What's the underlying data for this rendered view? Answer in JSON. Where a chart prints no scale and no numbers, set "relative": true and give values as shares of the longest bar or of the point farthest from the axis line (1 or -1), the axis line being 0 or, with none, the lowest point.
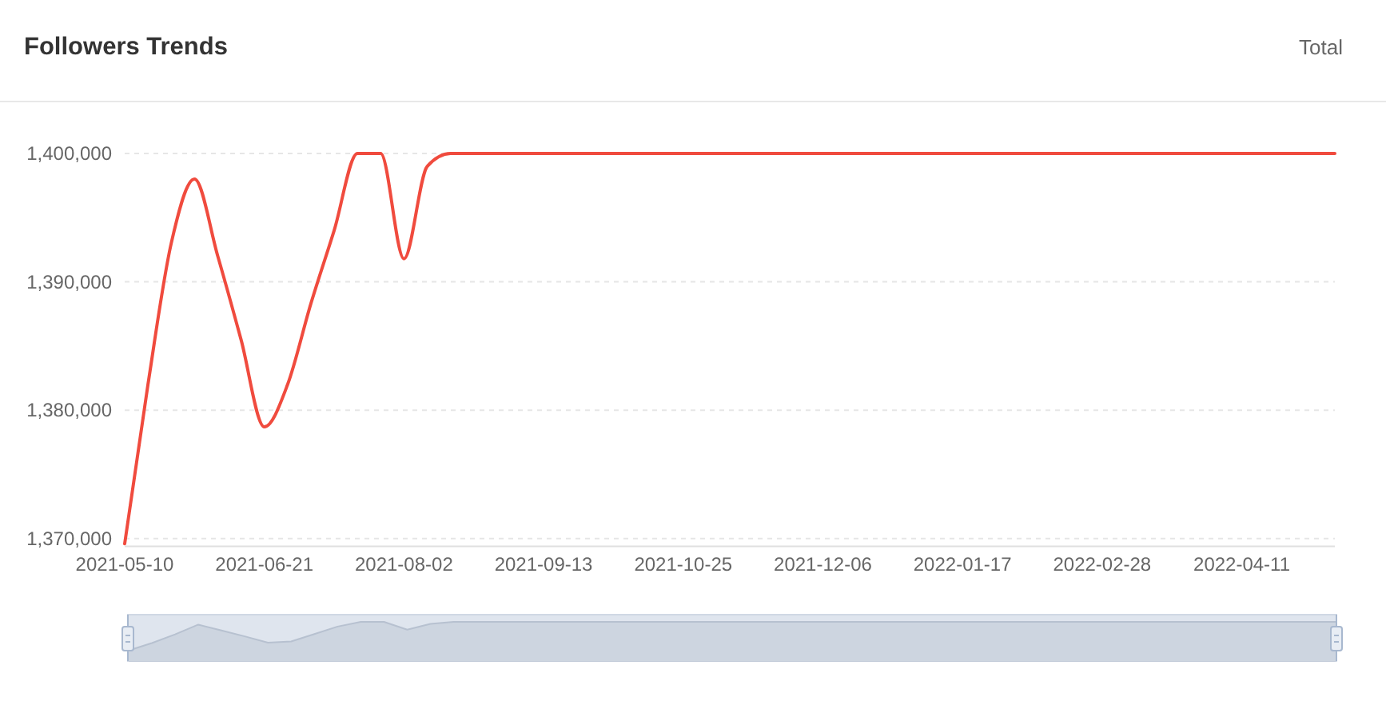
{
  "chart_data": [
    {
      "type": "line",
      "title": "Followers Trends",
      "annotations": [
        "Total"
      ],
      "x": [
        "2021-05-10",
        "2021-05-17",
        "2021-05-24",
        "2021-05-31",
        "2021-06-07",
        "2021-06-14",
        "2021-06-21",
        "2021-06-28",
        "2021-07-05",
        "2021-07-12",
        "2021-07-19",
        "2021-07-26",
        "2021-08-02",
        "2021-08-09",
        "2021-08-16",
        "2021-08-23",
        "2021-08-30",
        "2021-09-06",
        "2021-09-13",
        "2021-09-20",
        "2021-09-27",
        "2021-10-04",
        "2021-10-11",
        "2021-10-18",
        "2021-10-25",
        "2021-11-01",
        "2021-11-08",
        "2021-11-15",
        "2021-11-22",
        "2021-11-29",
        "2021-12-06",
        "2021-12-13",
        "2021-12-20",
        "2021-12-27",
        "2022-01-03",
        "2022-01-10",
        "2022-01-17",
        "2022-01-24",
        "2022-01-31",
        "2022-02-07",
        "2022-02-14",
        "2022-02-21",
        "2022-02-28",
        "2022-03-07",
        "2022-03-14",
        "2022-03-21",
        "2022-03-28",
        "2022-04-04",
        "2022-04-11",
        "2022-04-18",
        "2022-04-25",
        "2022-05-02",
        "2022-05-09"
      ],
      "series": [
        {
          "color": "#f04b3e",
          "values": [
            1369600,
            1382000,
            1393000,
            1398000,
            1392000,
            1385500,
            1378700,
            1382000,
            1388300,
            1394000,
            1400000,
            1400000,
            1391800,
            1399000,
            1400000,
            1400000,
            1400000,
            1400000,
            1400000,
            1400000,
            1400000,
            1400000,
            1400000,
            1400000,
            1400000,
            1400000,
            1400000,
            1400000,
            1400000,
            1400000,
            1400000,
            1400000,
            1400000,
            1400000,
            1400000,
            1400000,
            1400000,
            1400000,
            1400000,
            1400000,
            1400000,
            1400000,
            1400000,
            1400000,
            1400000,
            1400000,
            1400000,
            1400000,
            1400000,
            1400000,
            1400000,
            1400000,
            1400000
          ]
        }
      ],
      "xlim": [
        "2021-05-10",
        "2022-05-09"
      ],
      "xticks": [
        "2021-05-10",
        "2021-06-21",
        "2021-08-02",
        "2021-09-13",
        "2021-10-25",
        "2021-12-06",
        "2022-01-17",
        "2022-02-28",
        "2022-04-11"
      ],
      "ylim": [
        1369400,
        1400000
      ],
      "yticks": [
        {
          "value": 1370000,
          "label": "1,370,000"
        },
        {
          "value": 1380000,
          "label": "1,380,000"
        },
        {
          "value": 1390000,
          "label": "1,390,000"
        },
        {
          "value": 1400000,
          "label": "1,400,000"
        }
      ],
      "grid": "y",
      "line_style": "solid"
    },
    {
      "type": "line",
      "relative": true,
      "categories": [
        null,
        null,
        null,
        null,
        null,
        null,
        null,
        null,
        null,
        null,
        null,
        null,
        null,
        null,
        null,
        null,
        null,
        null,
        null,
        null,
        null,
        null,
        null,
        null,
        null,
        null,
        null,
        null,
        null,
        null,
        null,
        null,
        null,
        null,
        null,
        null,
        null,
        null,
        null,
        null,
        null,
        null,
        null,
        null,
        null,
        null,
        null,
        null,
        null,
        null,
        null,
        null,
        null
      ],
      "series": [
        {
          "color": "#b7c1d0",
          "values": [
            0.27,
            0.46,
            0.68,
            0.93,
            0.78,
            0.63,
            0.47,
            0.5,
            0.69,
            0.88,
            1,
            1,
            0.8,
            0.95,
            1,
            1,
            1,
            1,
            1,
            1,
            1,
            1,
            1,
            1,
            1,
            1,
            1,
            1,
            1,
            1,
            1,
            1,
            1,
            1,
            1,
            1,
            1,
            1,
            1,
            1,
            1,
            1,
            1,
            1,
            1,
            1,
            1,
            1,
            1,
            1,
            1,
            1,
            1
          ]
        }
      ]
    }
  ]
}
